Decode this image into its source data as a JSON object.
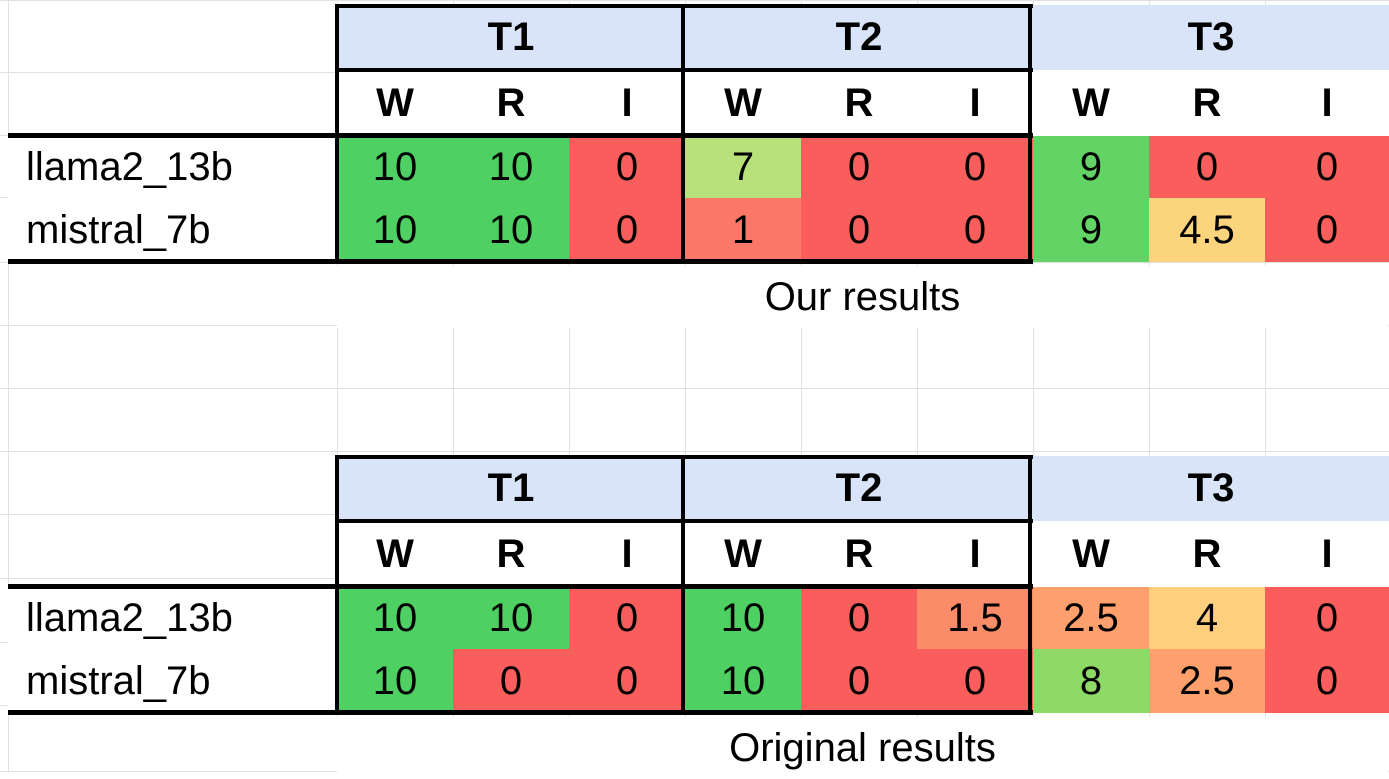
{
  "colors": {
    "header_bg": "#dae4f8",
    "grid_line": "#e1e1e1",
    "border": "#000000",
    "value_10": "#4ed062",
    "value_9": "#64d365",
    "value_8": "#8fd966",
    "value_7": "#b8e07b",
    "value_4.5": "#fdd47e",
    "value_4": "#fecf7d",
    "value_2.5": "#fda06d",
    "value_1.5": "#fb8c6a",
    "value_1": "#fb7868",
    "value_0": "#f95d5c"
  },
  "tables": [
    {
      "caption": "Our results",
      "groups": [
        "T1",
        "T2",
        "T3"
      ],
      "subheaders": [
        "W",
        "R",
        "I",
        "W",
        "R",
        "I",
        "W",
        "R",
        "I"
      ],
      "rows": [
        {
          "model": "llama2_13b",
          "values": [
            "10",
            "10",
            "0",
            "7",
            "0",
            "0",
            "9",
            "0",
            "0"
          ]
        },
        {
          "model": "mistral_7b",
          "values": [
            "10",
            "10",
            "0",
            "1",
            "0",
            "0",
            "9",
            "4.5",
            "0"
          ]
        }
      ]
    },
    {
      "caption": "Original results",
      "groups": [
        "T1",
        "T2",
        "T3"
      ],
      "subheaders": [
        "W",
        "R",
        "I",
        "W",
        "R",
        "I",
        "W",
        "R",
        "I"
      ],
      "rows": [
        {
          "model": "llama2_13b",
          "values": [
            "10",
            "10",
            "0",
            "10",
            "0",
            "1.5",
            "2.5",
            "4",
            "0"
          ]
        },
        {
          "model": "mistral_7b",
          "values": [
            "10",
            "0",
            "0",
            "10",
            "0",
            "0",
            "8",
            "2.5",
            "0"
          ]
        }
      ]
    }
  ]
}
